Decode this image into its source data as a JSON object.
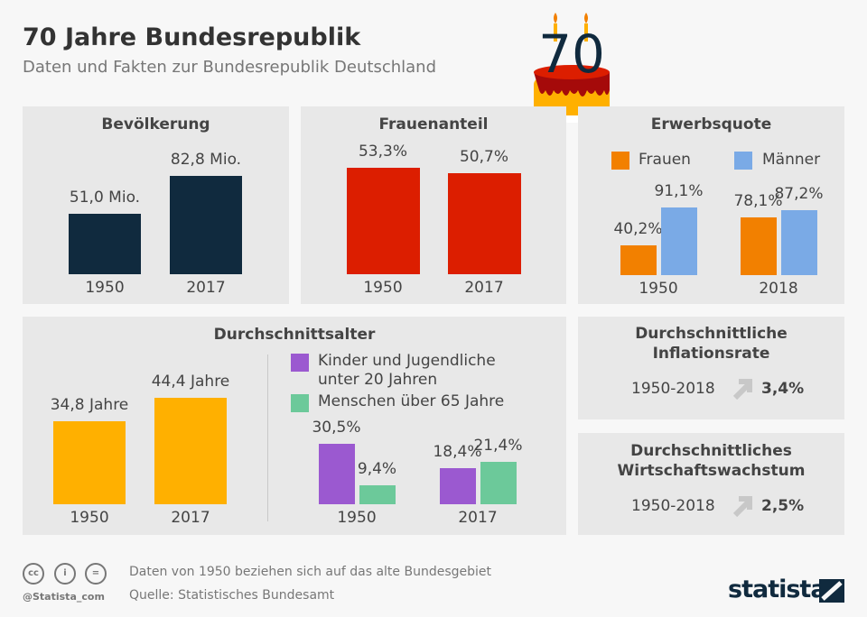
{
  "header": {
    "title": "70 Jahre Bundesrepublik",
    "subtitle": "Daten und Fakten zur Bundesrepublik Deutschland",
    "cake_number": "70"
  },
  "colors": {
    "navy": "#102a3e",
    "red": "#dc1e00",
    "orange": "#f28000",
    "blue": "#7aaae6",
    "yellow": "#ffb000",
    "purple": "#9b59d0",
    "green": "#6cc99a",
    "panel": "#e8e8e8",
    "arrow": "#c8c8c8"
  },
  "chart_data": [
    {
      "type": "bar",
      "title": "Bevölkerung",
      "categories": [
        "1950",
        "2017"
      ],
      "values": [
        51.0,
        82.8
      ],
      "labels": [
        "51,0 Mio.",
        "82,8 Mio."
      ],
      "unit": "Mio.",
      "color": "#102a3e"
    },
    {
      "type": "bar",
      "title": "Frauenanteil",
      "categories": [
        "1950",
        "2017"
      ],
      "values": [
        53.3,
        50.7
      ],
      "labels": [
        "53,3%",
        "50,7%"
      ],
      "unit": "%",
      "color": "#dc1e00"
    },
    {
      "type": "bar",
      "title": "Erwerbsquote",
      "categories": [
        "1950",
        "2018"
      ],
      "series": [
        {
          "name": "Frauen",
          "values": [
            40.2,
            78.1
          ],
          "labels": [
            "40,2%",
            "78,1%"
          ],
          "color": "#f28000"
        },
        {
          "name": "Männer",
          "values": [
            91.1,
            87.2
          ],
          "labels": [
            "91,1%",
            "87,2%"
          ],
          "color": "#7aaae6"
        }
      ],
      "legend": "top"
    },
    {
      "type": "bar",
      "title": "Durchschnittsalter",
      "categories": [
        "1950",
        "2017"
      ],
      "values": [
        34.8,
        44.4
      ],
      "labels": [
        "34,8 Jahre",
        "44,4 Jahre"
      ],
      "unit": "Jahre",
      "color": "#ffb000"
    },
    {
      "type": "bar",
      "title": "",
      "categories": [
        "1950",
        "2017"
      ],
      "series": [
        {
          "name": "Kinder und Jugendliche unter 20 Jahren",
          "name_lines": [
            "Kinder und Jugendliche",
            "unter 20 Jahren"
          ],
          "values": [
            30.5,
            18.4
          ],
          "labels": [
            "30,5%",
            "18,4%"
          ],
          "color": "#9b59d0"
        },
        {
          "name": "Menschen über 65 Jahre",
          "values": [
            9.4,
            21.4
          ],
          "labels": [
            "9,4%",
            "21,4%"
          ],
          "color": "#6cc99a"
        }
      ],
      "legend": "top"
    }
  ],
  "stats": [
    {
      "title_lines": [
        "Durchschnittliche",
        "Inflationsrate"
      ],
      "range": "1950-2018",
      "value": "3,4%",
      "icon": "arrow-up-right-icon"
    },
    {
      "title_lines": [
        "Durchschnittliches",
        "Wirtschaftswachstum"
      ],
      "range": "1950-2018",
      "value": "2,5%",
      "icon": "arrow-up-right-icon"
    }
  ],
  "footer": {
    "note": "Daten von 1950 beziehen sich auf das alte Bundesgebiet",
    "source": "Quelle: Statistisches Bundesamt",
    "handle": "@Statista_com",
    "brand": "statista",
    "cc_icons": [
      "cc-icon",
      "by-icon",
      "nd-icon"
    ],
    "cc_text": [
      "cc",
      "i",
      "="
    ]
  }
}
